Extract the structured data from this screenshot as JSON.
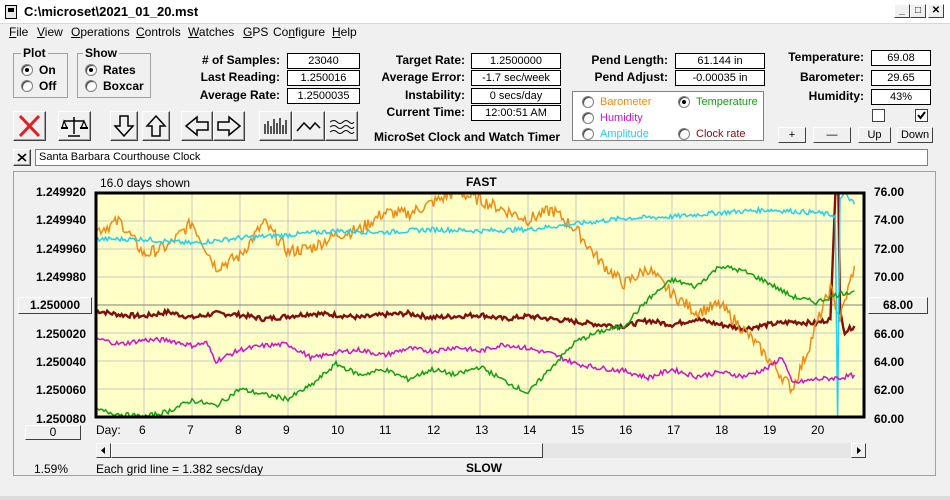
{
  "window": {
    "title": "C:\\microset\\2021_01_20.mst"
  },
  "menu": [
    {
      "label": "File",
      "key": "F",
      "rest": "ile"
    },
    {
      "label": "View",
      "key": "V",
      "rest": "iew"
    },
    {
      "label": "Operations",
      "key": "O",
      "rest": "perations"
    },
    {
      "label": "Controls",
      "key": "C",
      "rest": "ontrols"
    },
    {
      "label": "Watches",
      "key": "W",
      "rest": "atches"
    },
    {
      "label": "GPS",
      "key": "G",
      "rest": "PS"
    },
    {
      "label": "Configure",
      "key": "n",
      "pre": "Co",
      "rest": "figure"
    },
    {
      "label": "Help",
      "key": "H",
      "rest": "elp"
    }
  ],
  "plot_group": {
    "title": "Plot",
    "on": "On",
    "off": "Off",
    "selected": "On"
  },
  "show_group": {
    "title": "Show",
    "rates": "Rates",
    "boxcar": "Boxcar",
    "selected": "Rates"
  },
  "stats": {
    "samples_label": "# of Samples:",
    "samples": "23040",
    "last_label": "Last Reading:",
    "last": "1.250016",
    "avg_label": "Average Rate:",
    "avg": "1.2500035",
    "target_label": "Target Rate:",
    "target": "1.2500000",
    "avgerr_label": "Average Error:",
    "avgerr": "-1.7 sec/week",
    "instab_label": "Instability:",
    "instab": "0 secs/day",
    "time_label": "Current Time:",
    "time": "12:00:51 AM",
    "pendlen_label": "Pend Length:",
    "pendlen": "61.144 in",
    "pendadj_label": "Pend Adjust:",
    "pendadj": "-0.00035 in",
    "temp_label": "Temperature:",
    "temp": "69.08",
    "baro_label": "Barometer:",
    "baro": "29.65",
    "hum_label": "Humidity:",
    "hum": "43%"
  },
  "app_caption": "MicroSet Clock and Watch Timer",
  "graph_select": {
    "barometer": "Barometer",
    "temperature": "Temperature",
    "humidity": "Humidity",
    "amplitude": "Amplitude",
    "clockrate": "Clock rate",
    "selected": "Temperature",
    "colors": {
      "barometer": "#f08a10",
      "temperature": "#10a010",
      "humidity": "#d010d0",
      "amplitude": "#20d0f0",
      "clockrate": "#801010"
    }
  },
  "checkboxes": [
    {
      "checked": false
    },
    {
      "checked": true
    }
  ],
  "scale_buttons": {
    "plus": "+",
    "minus": "—",
    "up": "Up",
    "down": "Down"
  },
  "description": "Santa Barbara Courthouse Clock",
  "chart": {
    "days_shown": "16.0 days shown",
    "fast": "FAST",
    "slow": "SLOW",
    "grid_note": "Each grid line = 1.382 secs/day",
    "percent": "1.59%",
    "day_label": "Day:",
    "left_center_btn": "1.250000",
    "right_center_btn": "68.00",
    "bottom_btn": "0"
  },
  "chart_data": {
    "type": "line",
    "title": "",
    "left_axis": {
      "ticks": [
        "1.249920",
        "1.249940",
        "1.249960",
        "1.249980",
        "1.250000",
        "1.250020",
        "1.250040",
        "1.250060",
        "1.250080"
      ]
    },
    "right_axis": {
      "ticks": [
        "76.00",
        "74.00",
        "72.00",
        "70.00",
        "68.00",
        "66.00",
        "64.00",
        "62.00",
        "60.00"
      ]
    },
    "x_ticks": [
      "6",
      "7",
      "8",
      "9",
      "10",
      "11",
      "12",
      "13",
      "14",
      "15",
      "16",
      "17",
      "18",
      "19",
      "20"
    ],
    "xlim": [
      5,
      21
    ],
    "right_ylim": [
      60,
      76
    ],
    "grid": true,
    "background": "#ffffc8",
    "series": [
      {
        "name": "Clock rate",
        "color": "#801010",
        "axis": "left",
        "x": [
          5.0,
          5.5,
          6.0,
          6.5,
          7.0,
          7.5,
          8.0,
          8.5,
          9.0,
          9.5,
          10.0,
          10.5,
          11.0,
          11.5,
          12.0,
          12.5,
          13.0,
          13.5,
          14.0,
          14.5,
          15.0,
          15.5,
          16.0,
          16.5,
          17.0,
          17.5,
          18.0,
          18.5,
          19.0,
          19.5,
          20.0,
          20.3,
          20.45,
          20.5,
          20.6,
          20.8
        ],
        "y": [
          67.6,
          67.3,
          67.2,
          67.5,
          67.1,
          67.4,
          67.3,
          67.0,
          67.2,
          67.4,
          67.3,
          67.1,
          67.3,
          67.4,
          67.1,
          67.2,
          67.3,
          67.0,
          67.2,
          67.0,
          66.8,
          66.6,
          66.5,
          66.9,
          66.6,
          67.0,
          66.6,
          66.3,
          66.6,
          66.8,
          66.7,
          67.0,
          80.0,
          67.5,
          66.1,
          66.5
        ]
      },
      {
        "name": "Barometer",
        "color": "#f08a10",
        "axis": "left",
        "x": [
          5.0,
          5.5,
          6.0,
          6.5,
          7.0,
          7.5,
          8.0,
          8.5,
          9.0,
          9.5,
          10.0,
          10.5,
          11.0,
          11.5,
          12.0,
          12.5,
          13.0,
          13.5,
          14.0,
          14.5,
          15.0,
          15.5,
          16.0,
          16.5,
          17.0,
          17.5,
          18.0,
          18.5,
          19.0,
          19.5,
          19.8,
          20.0,
          20.3,
          20.5,
          20.7,
          20.8
        ],
        "y": [
          73.3,
          74.0,
          71.6,
          72.2,
          73.9,
          70.7,
          71.5,
          73.9,
          71.8,
          72.1,
          73.0,
          73.4,
          74.6,
          74.5,
          75.3,
          76.1,
          75.5,
          74.8,
          74.1,
          74.8,
          73.4,
          71.1,
          69.5,
          70.6,
          68.8,
          67.5,
          68.0,
          66.2,
          64.2,
          62.0,
          64.5,
          66.5,
          69.2,
          67.0,
          69.5,
          70.8
        ]
      },
      {
        "name": "Amplitude",
        "color": "#20d0f0",
        "axis": "left",
        "x": [
          5.0,
          6.0,
          7.0,
          8.0,
          9.0,
          10.0,
          11.0,
          12.0,
          13.0,
          14.0,
          15.0,
          16.0,
          17.0,
          18.0,
          19.0,
          20.0,
          20.4,
          20.45,
          20.5,
          20.6,
          20.8
        ],
        "y": [
          72.7,
          72.7,
          72.4,
          72.8,
          73.0,
          73.3,
          73.2,
          73.4,
          73.3,
          73.4,
          73.8,
          74.2,
          74.3,
          74.6,
          74.8,
          74.6,
          74.4,
          60.0,
          75.5,
          76.0,
          75.2
        ]
      },
      {
        "name": "Humidity",
        "color": "#d010d0",
        "axis": "left",
        "x": [
          5.0,
          5.5,
          6.0,
          6.5,
          7.0,
          7.3,
          7.5,
          8.0,
          8.5,
          9.0,
          9.5,
          10.0,
          10.5,
          11.0,
          11.5,
          12.0,
          12.5,
          13.0,
          13.5,
          14.0,
          14.5,
          15.0,
          15.5,
          16.0,
          16.5,
          17.0,
          17.5,
          18.0,
          18.5,
          19.0,
          19.3,
          19.5,
          20.0,
          20.5,
          20.8
        ],
        "y": [
          65.6,
          65.2,
          65.5,
          65.5,
          65.1,
          65.3,
          64.0,
          64.8,
          65.1,
          65.2,
          64.2,
          64.6,
          64.8,
          64.4,
          64.9,
          64.7,
          65.0,
          64.7,
          65.2,
          64.9,
          64.5,
          63.8,
          63.5,
          63.3,
          62.8,
          63.4,
          62.9,
          63.2,
          62.9,
          63.5,
          64.3,
          62.4,
          62.7,
          62.8,
          63.0
        ]
      },
      {
        "name": "Temperature",
        "color": "#10a010",
        "axis": "right",
        "x": [
          5.0,
          5.5,
          6.0,
          6.5,
          7.0,
          7.5,
          8.0,
          8.5,
          9.0,
          9.5,
          10.0,
          10.5,
          11.0,
          11.5,
          12.0,
          12.5,
          13.0,
          13.5,
          14.0,
          14.5,
          15.0,
          15.5,
          16.0,
          16.5,
          17.0,
          17.5,
          18.0,
          18.5,
          19.0,
          19.5,
          20.0,
          20.5,
          20.8
        ],
        "y": [
          60.5,
          60.2,
          60.0,
          60.4,
          61.2,
          60.8,
          62.0,
          61.6,
          61.3,
          62.3,
          63.8,
          63.0,
          63.4,
          62.7,
          63.4,
          63.0,
          63.6,
          62.6,
          61.7,
          63.6,
          65.4,
          66.1,
          66.5,
          68.4,
          69.8,
          69.3,
          70.8,
          70.4,
          69.6,
          68.6,
          68.2,
          68.8,
          69.0
        ]
      }
    ]
  }
}
